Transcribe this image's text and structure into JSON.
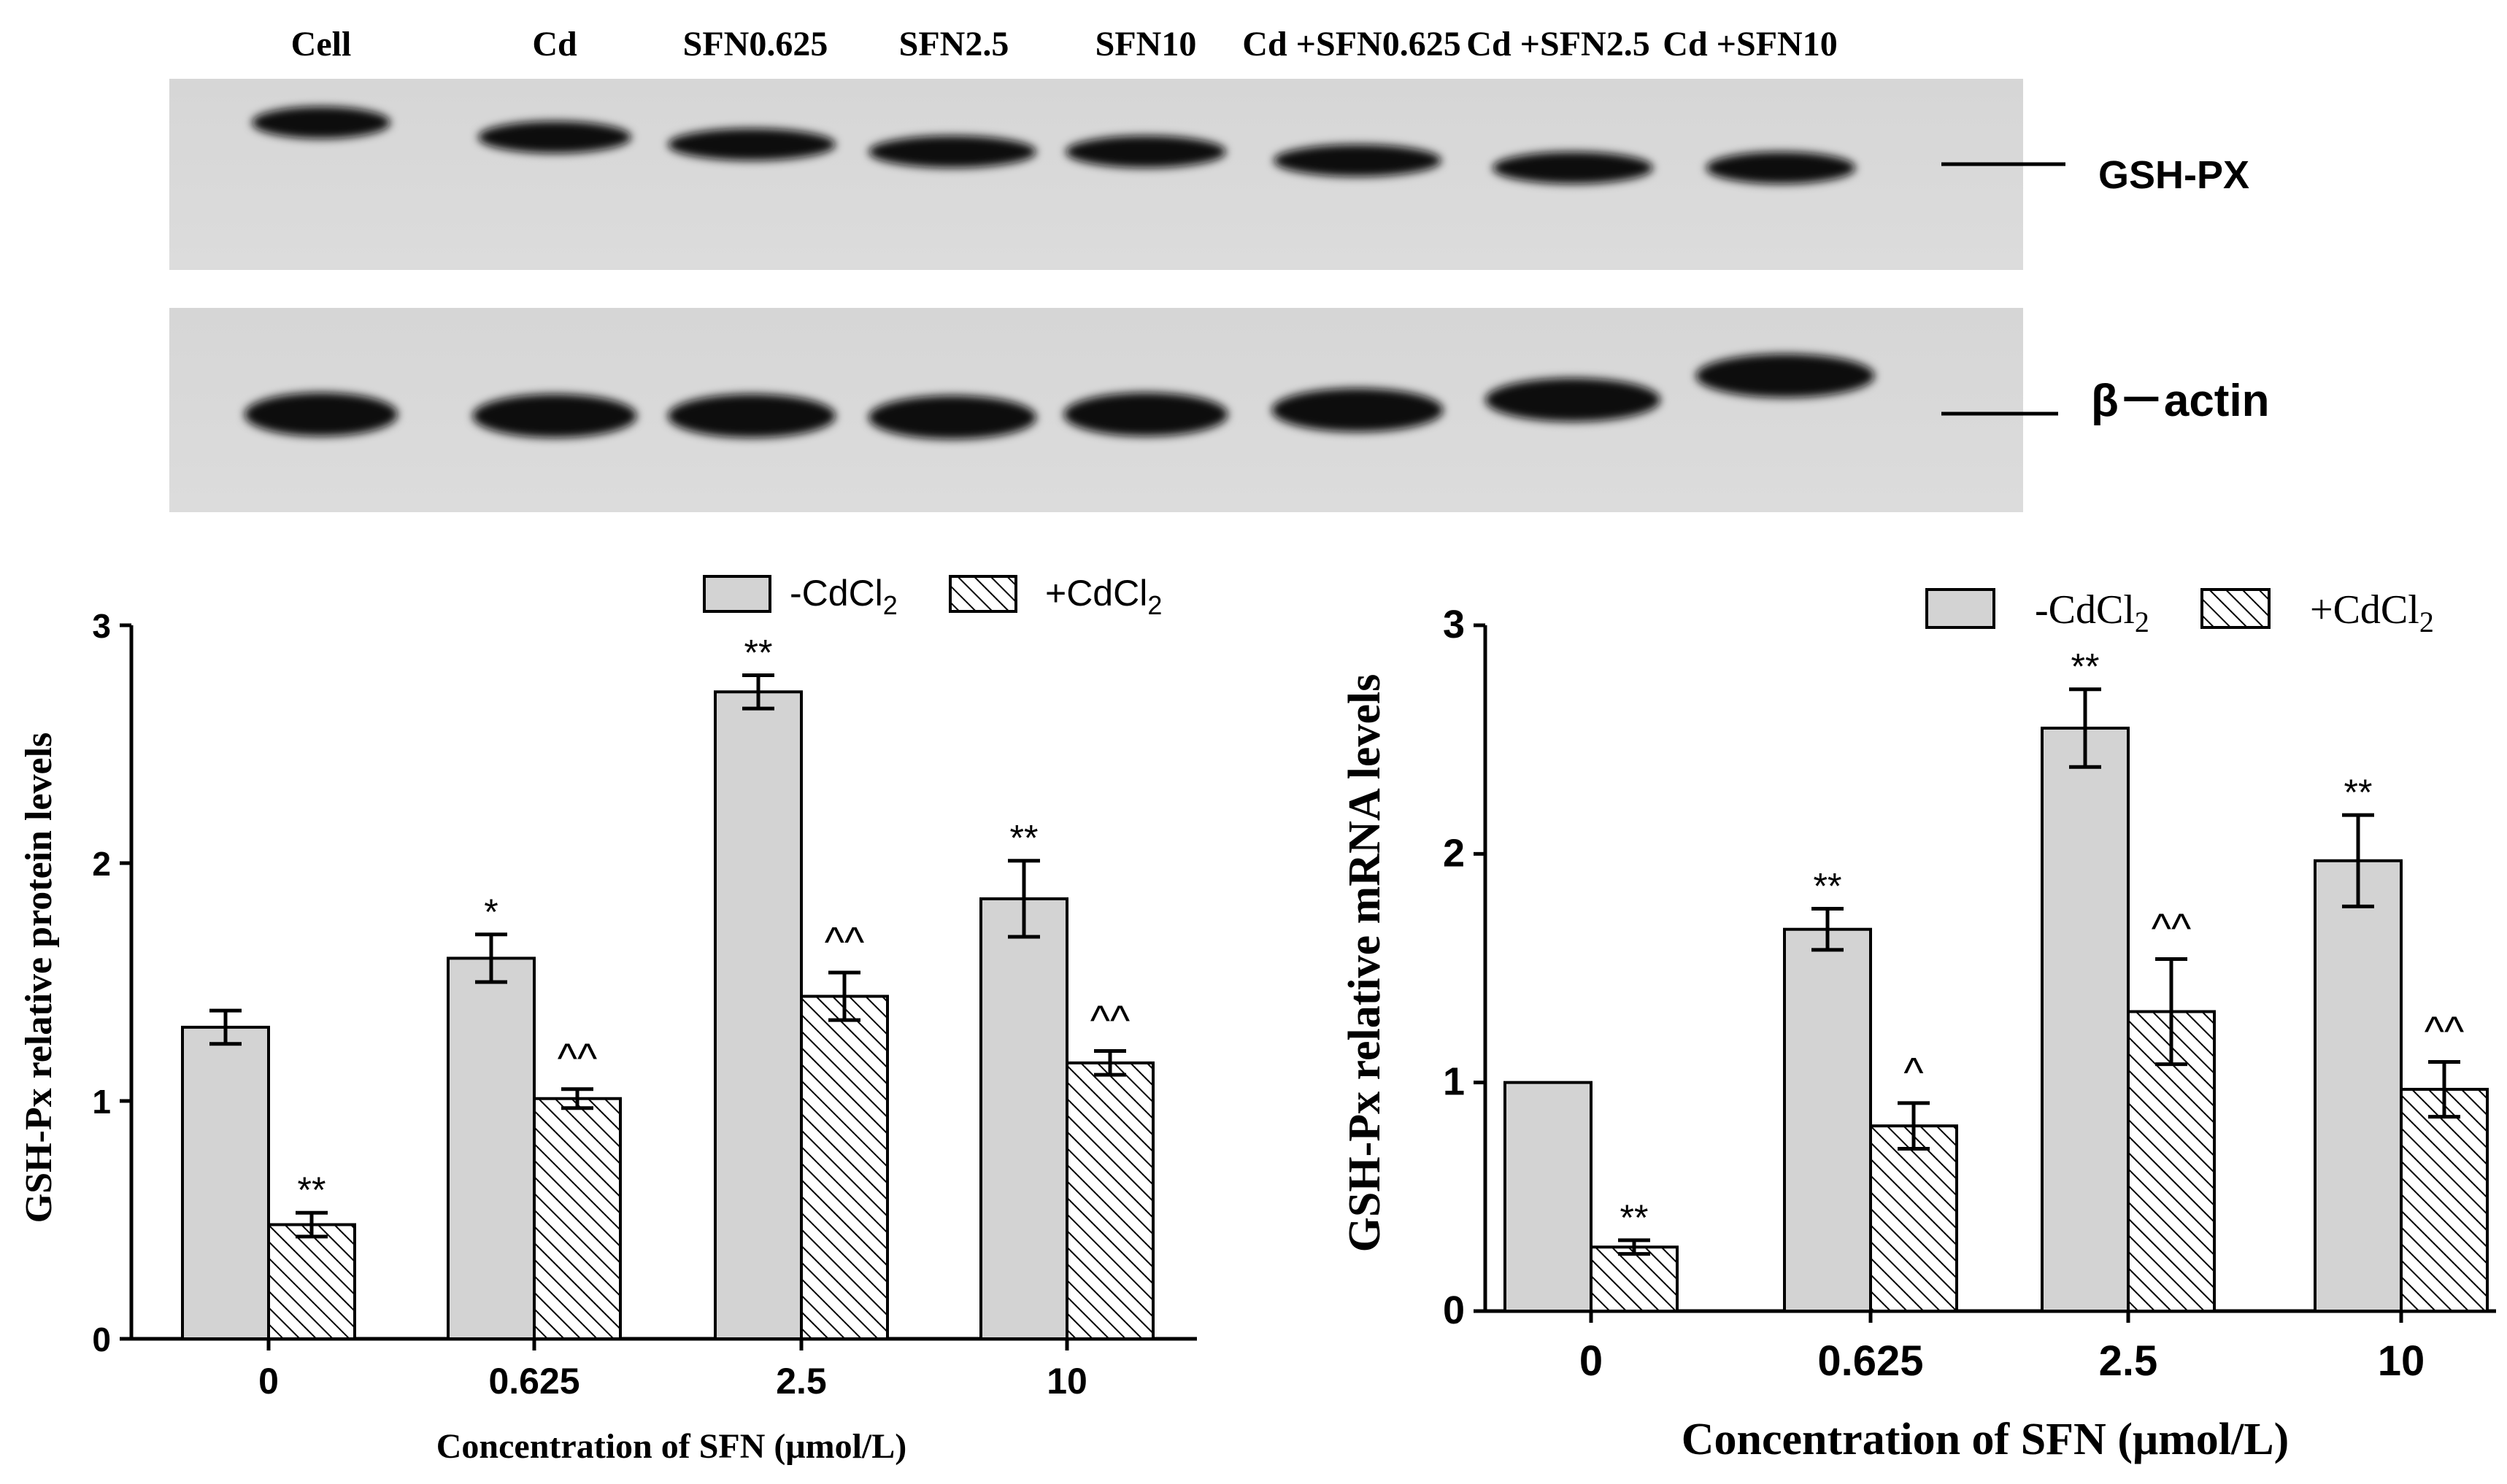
{
  "blot": {
    "lanes": [
      "Cell",
      "Cd",
      "SFN0.625",
      "SFN2.5",
      "SFN10",
      "Cd +SFN0.625",
      "Cd +SFN2.5",
      "Cd +SFN10"
    ],
    "bands": [
      "GSH-PX",
      "β－actin"
    ]
  },
  "chart_data": [
    {
      "type": "bar",
      "categories": [
        "0",
        "0.625",
        "2.5",
        "10"
      ],
      "xlabel": "Concentration of SFN (μmol/L)",
      "ylabel": "GSH-Px relative protein levels",
      "ylim": [
        0,
        3
      ],
      "yticks": [
        "0",
        "1",
        "2",
        "3"
      ],
      "legend_position": "top-right",
      "legend": {
        "minus_prefix": "-CdCl",
        "plus_prefix": "+CdCl",
        "subscript": "2"
      },
      "series": [
        {
          "name": "-CdCl2",
          "values": [
            1.31,
            1.6,
            2.72,
            1.85
          ],
          "errors": [
            0.07,
            0.1,
            0.07,
            0.16
          ],
          "sig": [
            "",
            "*",
            "**",
            "**"
          ],
          "fill": "#d3d3d3",
          "pattern": "solid"
        },
        {
          "name": "+CdCl2",
          "values": [
            0.48,
            1.01,
            1.44,
            1.16
          ],
          "errors": [
            0.05,
            0.04,
            0.1,
            0.05
          ],
          "sig": [
            "**",
            "^^",
            "^^",
            "^^"
          ],
          "fill": "#ffffff",
          "pattern": "hatch"
        }
      ]
    },
    {
      "type": "bar",
      "categories": [
        "0",
        "0.625",
        "2.5",
        "10"
      ],
      "xlabel": "Concentration of SFN (μmol/L)",
      "ylabel": "GSH-Px relative mRNA levels",
      "ylim": [
        0,
        3
      ],
      "yticks": [
        "0",
        "1",
        "2",
        "3"
      ],
      "legend_position": "top-right",
      "legend": {
        "minus_prefix": "-CdCl",
        "plus_prefix": "+CdCl",
        "subscript": "2"
      },
      "series": [
        {
          "name": "-CdCl2",
          "values": [
            1.0,
            1.67,
            2.55,
            1.97
          ],
          "errors": [
            0.0,
            0.09,
            0.17,
            0.2
          ],
          "sig": [
            "",
            "**",
            "**",
            "**"
          ],
          "fill": "#d3d3d3",
          "pattern": "solid"
        },
        {
          "name": "+CdCl2",
          "values": [
            0.28,
            0.81,
            1.31,
            0.97
          ],
          "errors": [
            0.03,
            0.1,
            0.23,
            0.12
          ],
          "sig": [
            "**",
            "^",
            "^^",
            "^^"
          ],
          "fill": "#ffffff",
          "pattern": "hatch"
        }
      ]
    }
  ]
}
